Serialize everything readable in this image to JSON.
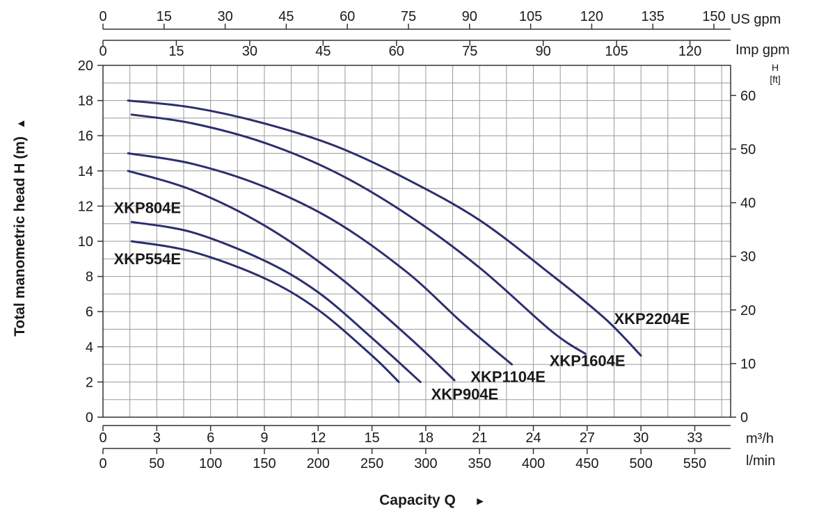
{
  "chart_data": {
    "type": "line",
    "title": "",
    "ylabel": "Total manometric head H (m)",
    "xlabel": "Capacity Q",
    "ylabel_arrow": "▲",
    "xlabel_arrow": "►",
    "xlim_m3h": [
      0,
      35
    ],
    "ylim_m": [
      0,
      20
    ],
    "grid": true,
    "line_color": "#2b2e6e",
    "x_ticks_m3h": [
      0,
      3,
      6,
      9,
      12,
      15,
      18,
      21,
      24,
      27,
      30,
      33
    ],
    "x_unit_m3h": "m³/h",
    "x_ticks_lmin": [
      0,
      50,
      100,
      150,
      200,
      250,
      300,
      350,
      400,
      450,
      500,
      550
    ],
    "x_unit_lmin": "l/min",
    "top_ticks_usgpm": [
      0,
      15,
      30,
      45,
      60,
      75,
      90,
      105,
      120,
      135,
      150
    ],
    "top_unit_usgpm": "US gpm",
    "top_ticks_impgpm": [
      0,
      15,
      30,
      45,
      60,
      75,
      90,
      105,
      120
    ],
    "top_unit_impgpm": "Imp gpm",
    "y_ticks_m": [
      0,
      2,
      4,
      6,
      8,
      10,
      12,
      14,
      16,
      18,
      20
    ],
    "y_ticks_ft": [
      0,
      10,
      20,
      30,
      40,
      50,
      60
    ],
    "y_unit_ft_line1": "H",
    "y_unit_ft_line2": "[ft]",
    "series": [
      {
        "name": "XKP554E",
        "points": [
          [
            1.6,
            10.0
          ],
          [
            5,
            9.4
          ],
          [
            9,
            7.9
          ],
          [
            12,
            6.1
          ],
          [
            15,
            3.5
          ],
          [
            16.5,
            2.0
          ]
        ]
      },
      {
        "name": "XKP804E",
        "points": [
          [
            1.6,
            11.1
          ],
          [
            5,
            10.5
          ],
          [
            9,
            8.9
          ],
          [
            12,
            7.1
          ],
          [
            15,
            4.5
          ],
          [
            17.7,
            2.0
          ]
        ]
      },
      {
        "name": "XKP904E",
        "points": [
          [
            1.4,
            14.0
          ],
          [
            5,
            12.9
          ],
          [
            9,
            10.9
          ],
          [
            13,
            8.1
          ],
          [
            17,
            4.6
          ],
          [
            19.6,
            2.1
          ]
        ]
      },
      {
        "name": "XKP1104E",
        "points": [
          [
            1.4,
            15.0
          ],
          [
            5,
            14.4
          ],
          [
            9,
            13.1
          ],
          [
            13,
            11.1
          ],
          [
            17,
            8.2
          ],
          [
            20,
            5.4
          ],
          [
            22.8,
            3.0
          ]
        ]
      },
      {
        "name": "XKP1604E",
        "points": [
          [
            1.6,
            17.2
          ],
          [
            5,
            16.7
          ],
          [
            9,
            15.6
          ],
          [
            13,
            13.9
          ],
          [
            17,
            11.5
          ],
          [
            21,
            8.5
          ],
          [
            25,
            4.9
          ],
          [
            26.9,
            3.6
          ]
        ]
      },
      {
        "name": "XKP2204E",
        "points": [
          [
            1.4,
            18.0
          ],
          [
            5,
            17.6
          ],
          [
            9,
            16.7
          ],
          [
            13,
            15.4
          ],
          [
            17,
            13.5
          ],
          [
            21,
            11.2
          ],
          [
            25,
            8.1
          ],
          [
            28,
            5.6
          ],
          [
            30,
            3.5
          ]
        ]
      }
    ],
    "label_positions_m3h": {
      "XKP804E": [
        0.6,
        11.6
      ],
      "XKP554E": [
        0.6,
        8.7
      ],
      "XKP904E": [
        18.3,
        1.0
      ],
      "XKP1104E": [
        20.5,
        2.0
      ],
      "XKP1604E": [
        24.9,
        2.9
      ],
      "XKP2204E": [
        28.5,
        5.3
      ]
    }
  }
}
